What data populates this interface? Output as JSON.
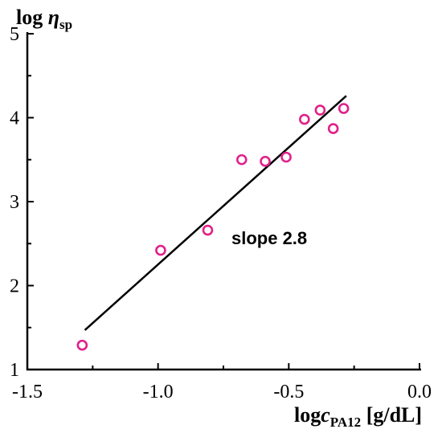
{
  "chart_data": {
    "type": "scatter",
    "xlim": [
      -1.5,
      0.0
    ],
    "ylim": [
      1,
      5
    ],
    "x_ticks": [
      -1.5,
      -1.0,
      -0.5,
      0.0
    ],
    "x_tick_labels": [
      "-1.5",
      "-1.0",
      "-0.5",
      "0.0"
    ],
    "y_ticks": [
      1,
      2,
      3,
      4,
      5
    ],
    "y_tick_labels": [
      "1",
      "2",
      "3",
      "4",
      "5"
    ],
    "ylabel": {
      "main": "log ",
      "symbol": "η",
      "sub": "sp"
    },
    "xlabel": {
      "main": "log",
      "symbol": "c",
      "sub": "PA12",
      "unit": " [g/dL]"
    },
    "annotation": "slope 2.8",
    "marker_color": "#e0218a",
    "line_color": "#000000",
    "series": [
      {
        "marker": "open-circle",
        "points": [
          {
            "x": -1.29,
            "y": 1.29
          },
          {
            "x": -0.99,
            "y": 2.42
          },
          {
            "x": -0.81,
            "y": 2.66
          },
          {
            "x": -0.68,
            "y": 3.5
          },
          {
            "x": -0.59,
            "y": 3.48
          },
          {
            "x": -0.51,
            "y": 3.53
          },
          {
            "x": -0.44,
            "y": 3.98
          },
          {
            "x": -0.38,
            "y": 4.09
          },
          {
            "x": -0.33,
            "y": 3.87
          },
          {
            "x": -0.29,
            "y": 4.11
          }
        ]
      }
    ],
    "fit_line": {
      "slope": 2.8,
      "x_range": [
        -1.28,
        -0.28
      ],
      "y_range": [
        1.47,
        4.26
      ]
    }
  }
}
